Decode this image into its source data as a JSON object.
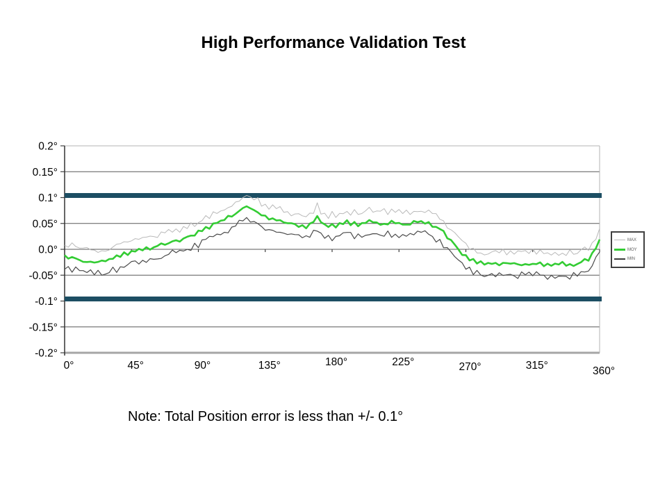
{
  "page": {
    "title": "High Performance Validation Test",
    "note": "Note: Total Position error is less than +/- 0.1°"
  },
  "chart_data": {
    "type": "line",
    "title": "High Performance Validation Test",
    "xlabel": "",
    "ylabel": "",
    "xlim": [
      0,
      360
    ],
    "ylim": [
      -0.2,
      0.2
    ],
    "grid": true,
    "x_ticks": [
      "0°",
      "45°",
      "90°",
      "135°",
      "180°",
      "225°",
      "270°",
      "315°",
      "360°"
    ],
    "x_tick_values": [
      0,
      45,
      90,
      135,
      180,
      225,
      270,
      315,
      360
    ],
    "y_ticks": [
      "0.2°",
      "0.15°",
      "0.1°",
      "0.05°",
      "0.0°",
      "-0.05°",
      "-0.1°",
      "-0.15°",
      "-0.2°"
    ],
    "y_tick_values": [
      0.2,
      0.15,
      0.1,
      0.05,
      0.0,
      -0.05,
      -0.1,
      -0.15,
      -0.2
    ],
    "limit_lines": {
      "values": [
        0.1,
        -0.1
      ],
      "color": "#1c4e63"
    },
    "legend": {
      "position": "right-outside",
      "entries": [
        "MAX",
        "MOY",
        "MIN"
      ]
    },
    "series": [
      {
        "name": "MAX",
        "color": "#b9b9b9",
        "width": 1,
        "offset": 0.022,
        "noise": 1.0,
        "seed": 1
      },
      {
        "name": "MIN",
        "color": "#4a4a4a",
        "width": 1.2,
        "offset": -0.022,
        "noise": 1.0,
        "seed": 2
      },
      {
        "name": "MOY",
        "color": "#33cc33",
        "width": 2.6,
        "offset": 0,
        "noise": 0.6,
        "seed": 3
      }
    ],
    "moy_curve_anchors": {
      "x": [
        0,
        8,
        15,
        22,
        30,
        38,
        45,
        52,
        60,
        70,
        80,
        90,
        100,
        108,
        115,
        122,
        127,
        132,
        138,
        145,
        152,
        158,
        163,
        167,
        169,
        172,
        176,
        182,
        190,
        198,
        205,
        212,
        220,
        228,
        235,
        242,
        247,
        252,
        257,
        261,
        265,
        270,
        276,
        282,
        290,
        298,
        306,
        314,
        322,
        330,
        338,
        345,
        352,
        356,
        360
      ],
      "y": [
        -0.012,
        -0.018,
        -0.023,
        -0.026,
        -0.022,
        -0.012,
        -0.004,
        0.0,
        0.004,
        0.012,
        0.02,
        0.032,
        0.046,
        0.058,
        0.068,
        0.085,
        0.078,
        0.068,
        0.06,
        0.055,
        0.05,
        0.046,
        0.042,
        0.05,
        0.068,
        0.052,
        0.044,
        0.046,
        0.052,
        0.048,
        0.053,
        0.049,
        0.052,
        0.048,
        0.052,
        0.053,
        0.048,
        0.04,
        0.026,
        0.012,
        0.0,
        -0.015,
        -0.024,
        -0.028,
        -0.03,
        -0.027,
        -0.029,
        -0.027,
        -0.03,
        -0.027,
        -0.029,
        -0.028,
        -0.02,
        -0.005,
        0.015
      ]
    },
    "noise_amplitude": 0.005,
    "note": "Note: Total Position error is less than +/- 0.1°"
  }
}
